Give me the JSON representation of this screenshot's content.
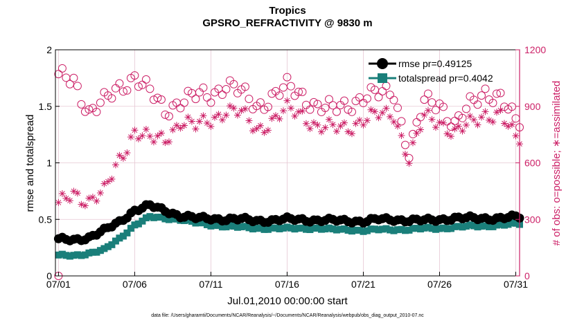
{
  "chart_data": {
    "type": "scatter",
    "title": "Tropics",
    "subtitle": "GPSRO_REFRACTIVITY @ 9830 m",
    "xlabel": "Jul.01,2010 00:00:00 start",
    "ylabel_left": "rmse and totalspread",
    "ylabel_right": "# of obs: o=possible; ∗=assimilated",
    "footnote": "data file: /Users/gharamti/Documents/NCAR/Reanalysis/~/Documents/NCAR/Reanalysis/webpub/obs_diag_output_2010-07.nc",
    "xlim": [
      0.8,
      31.25
    ],
    "ylim_left": [
      0,
      2
    ],
    "ylim_right": [
      0,
      1200
    ],
    "x_ticks": [
      1,
      6,
      11,
      16,
      21,
      26,
      31
    ],
    "x_tick_labels": [
      "07/01",
      "07/06",
      "07/11",
      "07/16",
      "07/21",
      "07/26",
      "07/31"
    ],
    "y_ticks_left": [
      0,
      0.5,
      1,
      1.5,
      2
    ],
    "y_tick_labels_left": [
      "0",
      "0.5",
      "1",
      "1.5",
      "2"
    ],
    "y_ticks_right": [
      0,
      300,
      600,
      900,
      1200
    ],
    "y_tick_labels_right": [
      "0",
      "300",
      "600",
      "900",
      "1200"
    ],
    "legend": [
      "rmse pr=0.49125",
      "totalspread pr=0.4042"
    ],
    "colors": {
      "rmse": "#000000",
      "spread": "#1a7f7a",
      "obs": "#cc1f66",
      "grid": "#e6c7d3"
    },
    "samples_per_day": 4,
    "rmse_daily": [
      0.32,
      0.32,
      0.34,
      0.4,
      0.48,
      0.58,
      0.62,
      0.58,
      0.53,
      0.51,
      0.51,
      0.5,
      0.5,
      0.49,
      0.49,
      0.5,
      0.5,
      0.49,
      0.49,
      0.49,
      0.48,
      0.5,
      0.5,
      0.49,
      0.49,
      0.5,
      0.51,
      0.51,
      0.51,
      0.51,
      0.52
    ],
    "spread_daily": [
      0.18,
      0.18,
      0.2,
      0.23,
      0.33,
      0.45,
      0.52,
      0.51,
      0.5,
      0.47,
      0.45,
      0.44,
      0.43,
      0.42,
      0.42,
      0.42,
      0.42,
      0.42,
      0.41,
      0.41,
      0.4,
      0.41,
      0.41,
      0.41,
      0.42,
      0.42,
      0.43,
      0.44,
      0.44,
      0.45,
      0.46
    ],
    "possible_daily": [
      1050,
      1040,
      870,
      920,
      1000,
      1060,
      970,
      880,
      930,
      950,
      960,
      1020,
      970,
      900,
      950,
      1000,
      960,
      900,
      880,
      910,
      950,
      960,
      980,
      650,
      920,
      920,
      800,
      900,
      980,
      950,
      810
    ],
    "assimilated_daily": [
      370,
      440,
      400,
      440,
      620,
      770,
      720,
      730,
      820,
      790,
      830,
      880,
      860,
      780,
      820,
      880,
      860,
      790,
      780,
      790,
      830,
      850,
      860,
      620,
      840,
      820,
      760,
      800,
      860,
      860,
      720
    ]
  }
}
